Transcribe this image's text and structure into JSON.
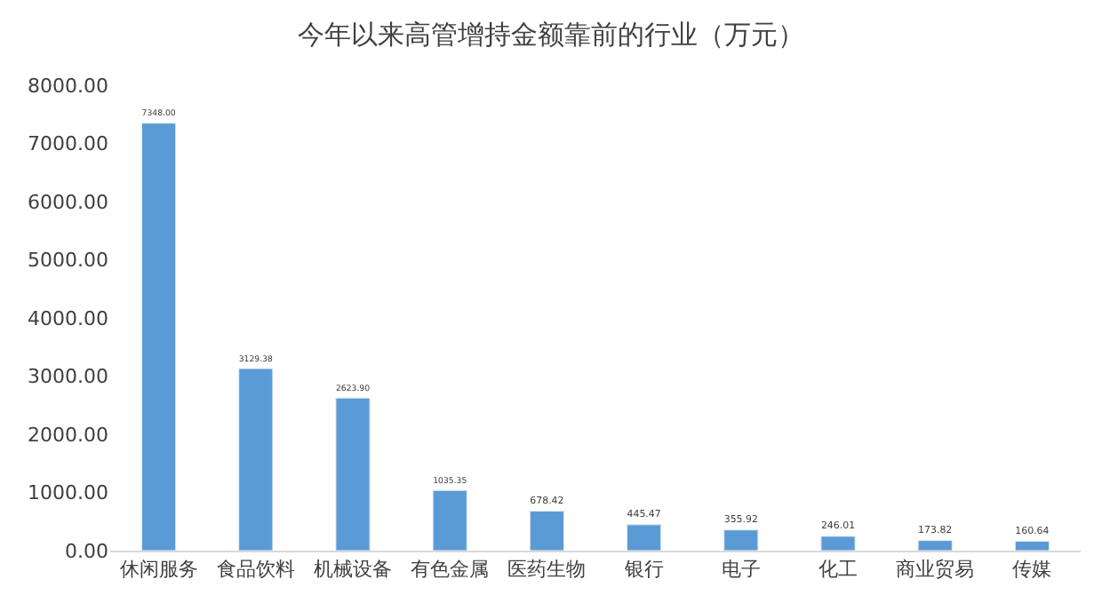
{
  "chart_data": {
    "type": "bar",
    "title": "今年以来高管增持金额靠前的行业（万元）",
    "categories": [
      "休闲服务",
      "食品饮料",
      "机械设备",
      "有色金属",
      "医药生物",
      "银行",
      "电子",
      "化工",
      "商业贸易",
      "传媒"
    ],
    "values": [
      7348.0,
      3129.38,
      2623.9,
      1035.35,
      678.42,
      445.47,
      355.92,
      246.01,
      173.82,
      160.64
    ],
    "value_labels": [
      "7348.00",
      "3129.38",
      "2623.90",
      "1035.35",
      "678.42",
      "445.47",
      "355.92",
      "246.01",
      "173.82",
      "160.64"
    ],
    "color": "#5b9bd5",
    "ylim": [
      0,
      8000
    ],
    "yticks": [
      {
        "value": 0,
        "label": "0.00"
      },
      {
        "value": 1000,
        "label": "1000.00"
      },
      {
        "value": 2000,
        "label": "2000.00"
      },
      {
        "value": 3000,
        "label": "3000.00"
      },
      {
        "value": 4000,
        "label": "4000.00"
      },
      {
        "value": 5000,
        "label": "5000.00"
      },
      {
        "value": 6000,
        "label": "6000.00"
      },
      {
        "value": 7000,
        "label": "7000.00"
      },
      {
        "value": 8000,
        "label": "8000.00"
      }
    ],
    "grid": false,
    "legend": false
  }
}
